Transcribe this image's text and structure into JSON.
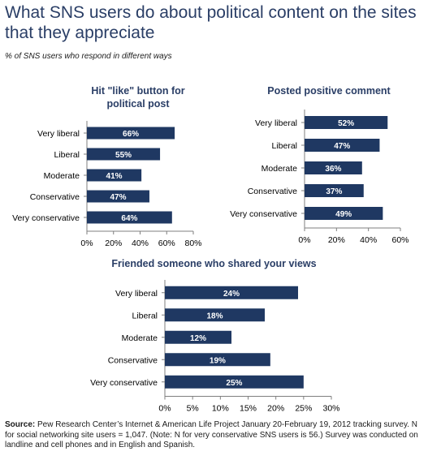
{
  "title": "What SNS users do about political content on the sites that they appreciate",
  "subtitle": "% of SNS users who respond in different ways",
  "source": {
    "label": "Source:",
    "text": "Pew Research Center’s Internet & American Life Project January 20-February 19, 2012 tracking survey. N for social networking site users = 1,047. (Note: N for very conservative SNS users is 56.) Survey was conducted on landline and cell phones and in English and Spanish."
  },
  "colors": {
    "bar": "#1f3862",
    "axis": "#7f7f7f",
    "title": "#2a3e66"
  },
  "chart_data": [
    {
      "type": "bar",
      "orientation": "horizontal",
      "title": "Hit \"like\" button for political post",
      "categories": [
        "Very liberal",
        "Liberal",
        "Moderate",
        "Conservative",
        "Very conservative"
      ],
      "values": [
        66,
        55,
        41,
        47,
        64
      ],
      "value_labels": [
        "66%",
        "55%",
        "41%",
        "47%",
        "64%"
      ],
      "xlim": [
        0,
        80
      ],
      "ticks": [
        "0%",
        "20%",
        "40%",
        "60%",
        "80%"
      ],
      "grid": false
    },
    {
      "type": "bar",
      "orientation": "horizontal",
      "title": "Posted positive comment",
      "categories": [
        "Very liberal",
        "Liberal",
        "Moderate",
        "Conservative",
        "Very conservative"
      ],
      "values": [
        52,
        47,
        36,
        37,
        49
      ],
      "value_labels": [
        "52%",
        "47%",
        "36%",
        "37%",
        "49%"
      ],
      "xlim": [
        0,
        60
      ],
      "ticks": [
        "0%",
        "20%",
        "40%",
        "60%"
      ],
      "grid": false
    },
    {
      "type": "bar",
      "orientation": "horizontal",
      "title": "Friended someone who shared your views",
      "categories": [
        "Very liberal",
        "Liberal",
        "Moderate",
        "Conservative",
        "Very conservative"
      ],
      "values": [
        24,
        18,
        12,
        19,
        25
      ],
      "value_labels": [
        "24%",
        "18%",
        "12%",
        "19%",
        "25%"
      ],
      "xlim": [
        0,
        30
      ],
      "ticks": [
        "0%",
        "5%",
        "10%",
        "15%",
        "20%",
        "25%",
        "30%"
      ],
      "grid": false
    }
  ]
}
